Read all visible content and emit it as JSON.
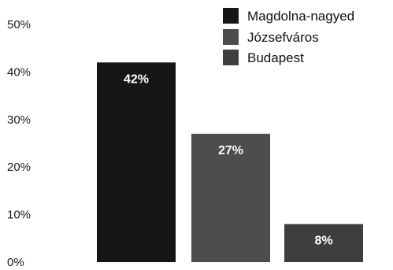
{
  "chart_data": {
    "type": "bar",
    "categories": [
      "Magdolna-nagyed",
      "Józsefváros",
      "Budapest"
    ],
    "values": [
      42,
      27,
      8
    ],
    "data_labels": [
      "42%",
      "27%",
      "8%"
    ],
    "colors": [
      "#161616",
      "#4d4d4d",
      "#3e3e3e"
    ],
    "ylim": [
      0,
      50
    ],
    "yticks": [
      0,
      10,
      20,
      30,
      40,
      50
    ],
    "ytick_labels": [
      "0%",
      "10%",
      "20%",
      "30%",
      "40%",
      "50%"
    ],
    "grid": false,
    "legend": {
      "position": "top-right",
      "entries": [
        "Magdolna-nagyed",
        "Józsefváros",
        "Budapest"
      ]
    }
  }
}
